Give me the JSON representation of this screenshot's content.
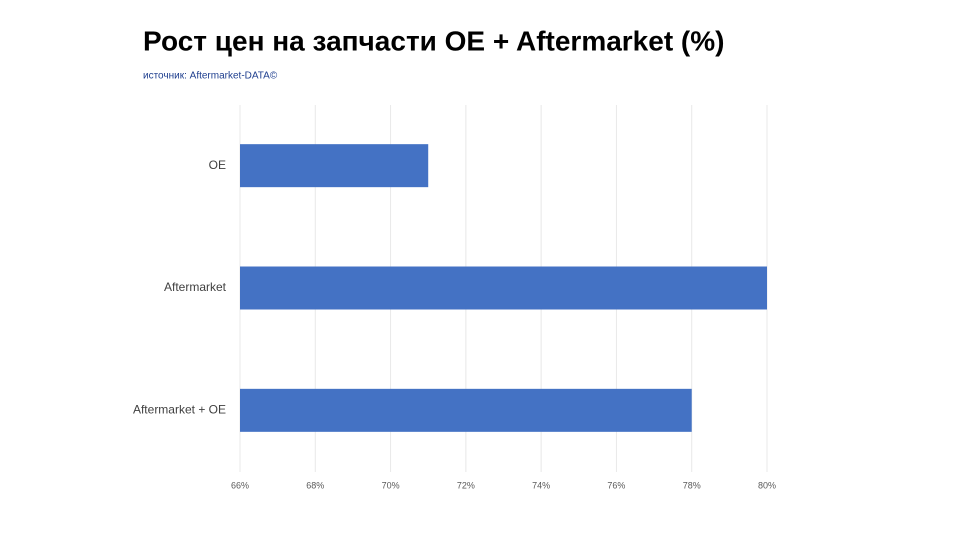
{
  "chart_data": {
    "type": "bar",
    "orientation": "horizontal",
    "title": "Рост цен на запчасти OE + Aftermarket (%)",
    "subtitle": "источник: Aftermarket-DATA©",
    "categories": [
      "OE",
      "Aftermarket",
      "Aftermarket + OE"
    ],
    "values": [
      71,
      80,
      78
    ],
    "color": "#4472c4",
    "xlim": [
      66,
      80
    ],
    "xticks": [
      {
        "value": 66,
        "label": "66%"
      },
      {
        "value": 68,
        "label": "68%"
      },
      {
        "value": 70,
        "label": "70%"
      },
      {
        "value": 72,
        "label": "72%"
      },
      {
        "value": 74,
        "label": "74%"
      },
      {
        "value": 76,
        "label": "76%"
      },
      {
        "value": 78,
        "label": "78%"
      },
      {
        "value": 80,
        "label": "80%"
      }
    ],
    "grid": true
  }
}
